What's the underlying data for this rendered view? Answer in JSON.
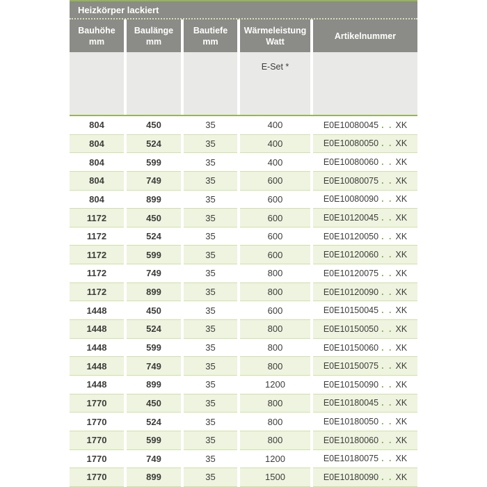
{
  "table": {
    "title": "Heizkörper lackiert",
    "columns": [
      {
        "lines": [
          "Bauhöhe",
          "mm"
        ]
      },
      {
        "lines": [
          "Baulänge",
          "mm"
        ]
      },
      {
        "lines": [
          "Bautiefe",
          "mm"
        ]
      },
      {
        "lines": [
          "Wärmeleistung",
          "Watt"
        ]
      },
      {
        "lines": [
          "Artikelnummer"
        ]
      }
    ],
    "subheader": {
      "eset_label": "E-Set *"
    },
    "article_dots": ". .",
    "rows": [
      {
        "bauhoehe": "804",
        "baulaenge": "450",
        "bautiefe": "35",
        "watt": "400",
        "artikel_prefix": "E0E10080045",
        "artikel_suffix": "XK"
      },
      {
        "bauhoehe": "804",
        "baulaenge": "524",
        "bautiefe": "35",
        "watt": "400",
        "artikel_prefix": "E0E10080050",
        "artikel_suffix": "XK"
      },
      {
        "bauhoehe": "804",
        "baulaenge": "599",
        "bautiefe": "35",
        "watt": "400",
        "artikel_prefix": "E0E10080060",
        "artikel_suffix": "XK"
      },
      {
        "bauhoehe": "804",
        "baulaenge": "749",
        "bautiefe": "35",
        "watt": "600",
        "artikel_prefix": "E0E10080075",
        "artikel_suffix": "XK"
      },
      {
        "bauhoehe": "804",
        "baulaenge": "899",
        "bautiefe": "35",
        "watt": "600",
        "artikel_prefix": "E0E10080090",
        "artikel_suffix": "XK"
      },
      {
        "bauhoehe": "1172",
        "baulaenge": "450",
        "bautiefe": "35",
        "watt": "600",
        "artikel_prefix": "E0E10120045",
        "artikel_suffix": "XK"
      },
      {
        "bauhoehe": "1172",
        "baulaenge": "524",
        "bautiefe": "35",
        "watt": "600",
        "artikel_prefix": "E0E10120050",
        "artikel_suffix": "XK"
      },
      {
        "bauhoehe": "1172",
        "baulaenge": "599",
        "bautiefe": "35",
        "watt": "600",
        "artikel_prefix": "E0E10120060",
        "artikel_suffix": "XK"
      },
      {
        "bauhoehe": "1172",
        "baulaenge": "749",
        "bautiefe": "35",
        "watt": "800",
        "artikel_prefix": "E0E10120075",
        "artikel_suffix": "XK"
      },
      {
        "bauhoehe": "1172",
        "baulaenge": "899",
        "bautiefe": "35",
        "watt": "800",
        "artikel_prefix": "E0E10120090",
        "artikel_suffix": "XK"
      },
      {
        "bauhoehe": "1448",
        "baulaenge": "450",
        "bautiefe": "35",
        "watt": "600",
        "artikel_prefix": "E0E10150045",
        "artikel_suffix": "XK"
      },
      {
        "bauhoehe": "1448",
        "baulaenge": "524",
        "bautiefe": "35",
        "watt": "800",
        "artikel_prefix": "E0E10150050",
        "artikel_suffix": "XK"
      },
      {
        "bauhoehe": "1448",
        "baulaenge": "599",
        "bautiefe": "35",
        "watt": "800",
        "artikel_prefix": "E0E10150060",
        "artikel_suffix": "XK"
      },
      {
        "bauhoehe": "1448",
        "baulaenge": "749",
        "bautiefe": "35",
        "watt": "800",
        "artikel_prefix": "E0E10150075",
        "artikel_suffix": "XK"
      },
      {
        "bauhoehe": "1448",
        "baulaenge": "899",
        "bautiefe": "35",
        "watt": "1200",
        "artikel_prefix": "E0E10150090",
        "artikel_suffix": "XK"
      },
      {
        "bauhoehe": "1770",
        "baulaenge": "450",
        "bautiefe": "35",
        "watt": "800",
        "artikel_prefix": "E0E10180045",
        "artikel_suffix": "XK"
      },
      {
        "bauhoehe": "1770",
        "baulaenge": "524",
        "bautiefe": "35",
        "watt": "800",
        "artikel_prefix": "E0E10180050",
        "artikel_suffix": "XK"
      },
      {
        "bauhoehe": "1770",
        "baulaenge": "599",
        "bautiefe": "35",
        "watt": "800",
        "artikel_prefix": "E0E10180060",
        "artikel_suffix": "XK"
      },
      {
        "bauhoehe": "1770",
        "baulaenge": "749",
        "bautiefe": "35",
        "watt": "1200",
        "artikel_prefix": "E0E10180075",
        "artikel_suffix": "XK"
      },
      {
        "bauhoehe": "1770",
        "baulaenge": "899",
        "bautiefe": "35",
        "watt": "1500",
        "artikel_prefix": "E0E10180090",
        "artikel_suffix": "XK"
      }
    ]
  },
  "colors": {
    "header_gray": "#8b8b87",
    "subheader_gray": "#e9e9e7",
    "accent_green": "#96b557",
    "row_green": "#eef4df",
    "separator_green": "#cfe0a8",
    "dot_green": "#7fb03c",
    "text_dark": "#3c3c3a"
  }
}
